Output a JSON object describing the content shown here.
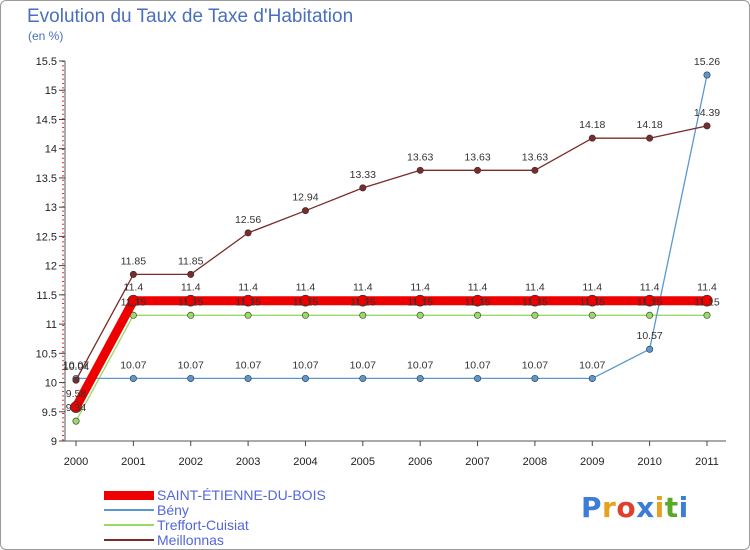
{
  "chart_data": {
    "type": "line",
    "title": "Evolution du Taux de Taxe d'Habitation",
    "subtitle": "(en %)",
    "x": [
      "2000",
      "2001",
      "2002",
      "2003",
      "2004",
      "2005",
      "2006",
      "2007",
      "2008",
      "2009",
      "2010",
      "2011"
    ],
    "ylim": [
      9,
      15.5
    ],
    "yticks": [
      "9",
      "9.5",
      "10",
      "10.5",
      "11",
      "11.5",
      "12",
      "12.5",
      "13",
      "13.5",
      "14",
      "14.5",
      "15",
      "15.5"
    ],
    "series": [
      {
        "name": "SAINT-ÉTIENNE-DU-BOIS",
        "color": "#ee0000",
        "values": [
          9.58,
          11.4,
          11.4,
          11.4,
          11.4,
          11.4,
          11.4,
          11.4,
          11.4,
          11.4,
          11.4,
          11.4
        ],
        "labels": [
          "9.58",
          "11.4",
          "11.4",
          "11.4",
          "11.4",
          "11.4",
          "11.4",
          "11.4",
          "11.4",
          "11.4",
          "11.4",
          "11.4"
        ]
      },
      {
        "name": "Bény",
        "color": "#5a98cf",
        "values": [
          10.07,
          10.07,
          10.07,
          10.07,
          10.07,
          10.07,
          10.07,
          10.07,
          10.07,
          10.07,
          10.57,
          15.26
        ],
        "labels": [
          "10.07",
          "10.07",
          "10.07",
          "10.07",
          "10.07",
          "10.07",
          "10.07",
          "10.07",
          "10.07",
          "10.07",
          "10.57",
          "15.26"
        ]
      },
      {
        "name": "Treffort-Cuisiat",
        "color": "#99d966",
        "values": [
          9.34,
          11.15,
          11.15,
          11.15,
          11.15,
          11.15,
          11.15,
          11.15,
          11.15,
          11.15,
          11.15,
          11.15
        ],
        "labels": [
          "9.34",
          "11.15",
          "11.15",
          "11.15",
          "11.15",
          "11.15",
          "11.15",
          "11.15",
          "11.15",
          "11.15",
          "11.15",
          "11.15"
        ]
      },
      {
        "name": "Meillonnas",
        "color": "#7a2b2b",
        "values": [
          10.04,
          11.85,
          11.85,
          12.56,
          12.94,
          13.33,
          13.63,
          13.63,
          13.63,
          14.18,
          14.18,
          14.39
        ],
        "labels": [
          "10.04",
          "11.85",
          "11.85",
          "12.56",
          "12.94",
          "13.33",
          "13.63",
          "13.63",
          "13.63",
          "14.18",
          "14.18",
          "14.39"
        ]
      }
    ]
  },
  "brand": {
    "letters": [
      "P",
      "r",
      "o",
      "x",
      "i",
      "t",
      "i"
    ],
    "colors": [
      "#3b7dd8",
      "#e8a020",
      "#e0402a",
      "#3b7dd8",
      "#e8a020",
      "#5aaa2a",
      "#3b7dd8"
    ]
  }
}
